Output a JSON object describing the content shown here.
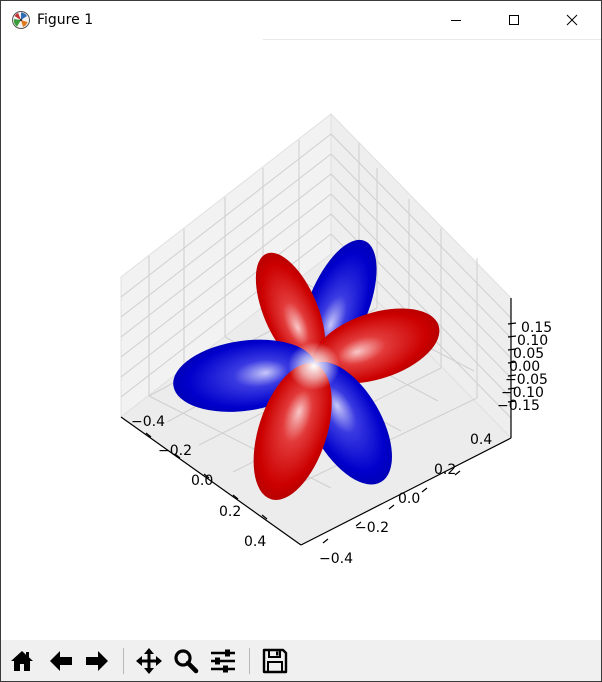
{
  "window": {
    "title": "Figure 1",
    "app_icon": "matplotlib-logo-icon",
    "controls": [
      "minimize-icon",
      "maximize-icon",
      "close-icon"
    ]
  },
  "toolbar": {
    "buttons": [
      "home-icon",
      "back-arrow-icon",
      "forward-arrow-icon",
      "pan-icon",
      "zoom-icon",
      "configure-subplots-icon",
      "save-icon"
    ]
  },
  "chart_data": {
    "type": "3d-surface",
    "title": "",
    "xlabel": "",
    "ylabel": "",
    "zlabel": "",
    "x_ticks": [
      "−0.4",
      "−0.2",
      "0.0",
      "0.2",
      "0.4"
    ],
    "y_ticks": [
      "−0.4",
      "−0.2",
      "0.0",
      "0.2",
      "0.4"
    ],
    "z_ticks": [
      "0.15",
      "0.10",
      "0.05",
      "0.00",
      "−0.05",
      "−0.10",
      "−0.15"
    ],
    "xlim": [
      -0.5,
      0.5
    ],
    "ylim": [
      -0.5,
      0.5
    ],
    "zlim": [
      -0.175,
      0.175
    ],
    "lobes": 6,
    "colors": {
      "positive": "#cc0000",
      "negative": "#0000cc",
      "node": "#ffffff"
    },
    "grid": true
  }
}
